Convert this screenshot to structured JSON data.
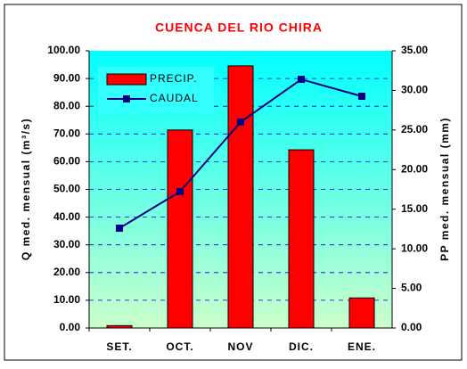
{
  "chart_data": {
    "type": "bar",
    "title": "CUENCA DEL RIO CHIRA",
    "y_label": "Q med. mensual (m³/s)",
    "y2_label": "PP med. mensual (mm)",
    "categories": [
      "SET.",
      "OCT.",
      "NOV",
      "DIC.",
      "ENE."
    ],
    "series": [
      {
        "name": "PRECIP.",
        "type": "bar",
        "axis": "y2",
        "color": "#ff0000",
        "values": [
          0.3,
          25.0,
          33.1,
          22.5,
          3.8
        ]
      },
      {
        "name": "CAUDAL",
        "type": "line",
        "color": "#000080",
        "values": [
          36.0,
          49.2,
          74.3,
          89.7,
          83.6
        ]
      }
    ],
    "ylim": [
      0,
      100
    ],
    "yticks": [
      {
        "value": 0,
        "label": "0.00"
      },
      {
        "value": 10,
        "label": "10.00"
      },
      {
        "value": 20,
        "label": "20.00"
      },
      {
        "value": 30,
        "label": "30.00"
      },
      {
        "value": 40,
        "label": "40.00"
      },
      {
        "value": 50,
        "label": "50.00"
      },
      {
        "value": 60,
        "label": "60.00"
      },
      {
        "value": 70,
        "label": "70.00"
      },
      {
        "value": 80,
        "label": "80.00"
      },
      {
        "value": 90,
        "label": "90.00"
      },
      {
        "value": 100,
        "label": "100.00"
      }
    ],
    "y2lim": [
      0,
      35
    ],
    "y2ticks": [
      {
        "value": 0,
        "label": "0.00"
      },
      {
        "value": 5,
        "label": "5.00"
      },
      {
        "value": 10,
        "label": "10.00"
      },
      {
        "value": 15,
        "label": "15.00"
      },
      {
        "value": 20,
        "label": "20.00"
      },
      {
        "value": 25,
        "label": "25.00"
      },
      {
        "value": 30,
        "label": "30.00"
      },
      {
        "value": 35,
        "label": "35.00"
      }
    ],
    "grid": true
  }
}
